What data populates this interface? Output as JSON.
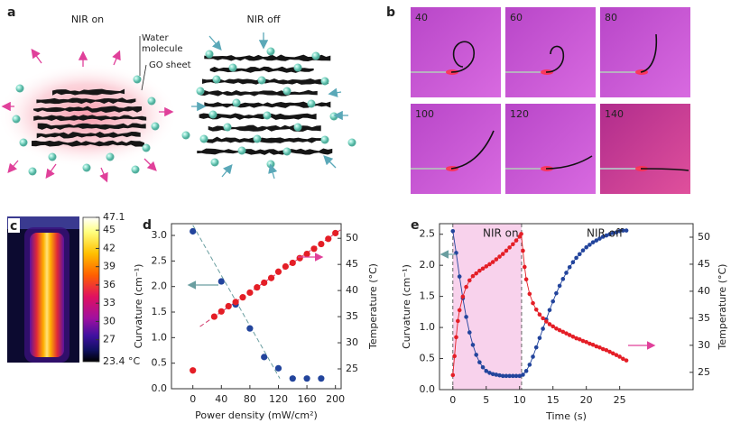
{
  "panel_a": {
    "label": "a",
    "left_title": "NIR on",
    "right_title": "NIR off",
    "water_label": "Water molecule",
    "sheet_label": "GO sheet"
  },
  "panel_b": {
    "label": "b",
    "photos": [
      40,
      60,
      80,
      100,
      120,
      140
    ]
  },
  "panel_c": {
    "label": "c",
    "colorbar": {
      "lim": [
        23.4,
        47.1
      ],
      "ticks": [
        47.1,
        45,
        42,
        39,
        36,
        33,
        30,
        27,
        {
          "value": 23.4,
          "label": "23.4 °C"
        }
      ]
    }
  },
  "chart_data": [
    {
      "type": "scatter",
      "label": "d",
      "x_label": "Power density (mW/cm²)",
      "y_label": "Curvature (cm⁻¹)",
      "y2_label": "Temperature (°C)",
      "xlim": [
        -30,
        208
      ],
      "xticks": [
        0,
        40,
        80,
        120,
        160,
        200
      ],
      "ylim": [
        0,
        3.23
      ],
      "yticks": [
        {
          "value": 0,
          "label": "0.0"
        },
        0.5,
        {
          "value": 1,
          "label": "1.0"
        },
        1.5,
        {
          "value": 2,
          "label": "2.0"
        },
        2.5,
        {
          "value": 3,
          "label": "3.0"
        }
      ],
      "y2lim": [
        21.2,
        52.8
      ],
      "y2ticks": [
        25,
        30,
        35,
        40,
        45,
        50
      ],
      "series": [
        {
          "color": "#6a9ea0",
          "style": "dashed",
          "axis": "y",
          "x": [
            0,
            122
          ],
          "values": [
            3.2,
            0.2
          ]
        },
        {
          "color": "#d2386a",
          "style": "dashed",
          "axis": "y2",
          "x": [
            10,
            208
          ],
          "values": [
            33.1,
            51.7
          ]
        },
        {
          "color": "#22449c",
          "axis": "y",
          "x": [
            0,
            40,
            60,
            80,
            100,
            120,
            140,
            160,
            180
          ],
          "values": [
            3.08,
            2.1,
            1.65,
            1.18,
            0.62,
            0.4,
            0.2,
            0.2,
            0.2
          ]
        },
        {
          "color": "#e41e26",
          "axis": "y2",
          "x": [
            0,
            30,
            40,
            50,
            60,
            70,
            80,
            90,
            100,
            110,
            120,
            130,
            140,
            150,
            160,
            170,
            180,
            190,
            200
          ],
          "values": [
            24.7,
            35.0,
            36.0,
            37.0,
            37.8,
            38.7,
            39.6,
            40.6,
            41.5,
            42.4,
            43.6,
            44.6,
            45.3,
            46.2,
            47.0,
            48.0,
            48.9,
            49.9,
            51.0
          ]
        }
      ]
    },
    {
      "type": "line",
      "label": "e",
      "x_label": "Time (s)",
      "y_label": "Curvature (cm⁻¹)",
      "y2_label": "Temperature (°C)",
      "annotations": [
        "NIR on",
        "NIR off"
      ],
      "shaded_span": [
        0,
        10.3
      ],
      "xlim": [
        -2,
        36
      ],
      "xticks": [
        0,
        5,
        10,
        15,
        20,
        25
      ],
      "ylim": [
        0,
        2.67
      ],
      "yticks": [
        {
          "value": 0,
          "label": "0.0"
        },
        0.5,
        {
          "value": 1,
          "label": "1.0"
        },
        1.5,
        {
          "value": 2,
          "label": "2.0"
        },
        2.5
      ],
      "y2lim": [
        21.8,
        52.5
      ],
      "y2ticks": [
        25,
        30,
        35,
        40,
        45,
        50
      ],
      "series": [
        {
          "color": "#22449c",
          "axis": "y",
          "x": [
            0,
            0.5,
            1,
            1.5,
            2,
            2.5,
            3,
            3.5,
            4,
            4.5,
            5,
            5.5,
            6,
            6.5,
            7,
            7.5,
            8,
            8.5,
            9,
            9.5,
            10,
            10.5,
            11,
            11.5,
            12,
            12.5,
            13,
            13.5,
            14,
            14.5,
            15,
            15.5,
            16,
            16.5,
            17,
            17.5,
            18,
            18.5,
            19,
            19.5,
            20,
            20.5,
            21,
            21.5,
            22,
            22.5,
            23,
            23.5,
            24,
            24.5,
            25,
            25.5,
            26
          ],
          "values": [
            2.55,
            2.2,
            1.82,
            1.47,
            1.17,
            0.92,
            0.72,
            0.56,
            0.44,
            0.36,
            0.3,
            0.27,
            0.25,
            0.24,
            0.23,
            0.22,
            0.22,
            0.22,
            0.22,
            0.22,
            0.22,
            0.24,
            0.3,
            0.4,
            0.53,
            0.68,
            0.83,
            0.98,
            1.13,
            1.28,
            1.42,
            1.55,
            1.67,
            1.78,
            1.88,
            1.97,
            2.05,
            2.12,
            2.18,
            2.24,
            2.29,
            2.33,
            2.37,
            2.4,
            2.43,
            2.46,
            2.48,
            2.5,
            2.52,
            2.53,
            2.55,
            2.56,
            2.56
          ]
        },
        {
          "color": "#e41e26",
          "axis": "y2",
          "x": [
            0,
            0.25,
            0.5,
            0.75,
            1,
            1.5,
            2,
            2.5,
            3,
            3.5,
            4,
            4.5,
            5,
            5.5,
            6,
            6.5,
            7,
            7.5,
            8,
            8.5,
            9,
            9.5,
            10,
            10.25,
            10.5,
            10.75,
            11,
            11.5,
            12,
            12.5,
            13,
            13.5,
            14,
            14.5,
            15,
            15.5,
            16,
            16.5,
            17,
            17.5,
            18,
            18.5,
            19,
            19.5,
            20,
            20.5,
            21,
            21.5,
            22,
            22.5,
            23,
            23.5,
            24,
            24.5,
            25,
            25.5,
            26
          ],
          "values": [
            24.5,
            28,
            31.5,
            34.5,
            36.5,
            39,
            40.8,
            42,
            42.8,
            43.3,
            43.8,
            44.2,
            44.6,
            45,
            45.4,
            45.9,
            46.4,
            46.9,
            47.5,
            48.1,
            48.7,
            49.4,
            50.1,
            50.6,
            47.5,
            44.5,
            42.2,
            39.5,
            37.8,
            36.6,
            35.7,
            35,
            34.4,
            33.9,
            33.5,
            33.1,
            32.8,
            32.5,
            32.2,
            31.9,
            31.6,
            31.3,
            31.1,
            30.8,
            30.6,
            30.3,
            30.1,
            29.8,
            29.6,
            29.3,
            29.1,
            28.8,
            28.5,
            28.2,
            27.9,
            27.5,
            27.2
          ]
        }
      ]
    }
  ]
}
